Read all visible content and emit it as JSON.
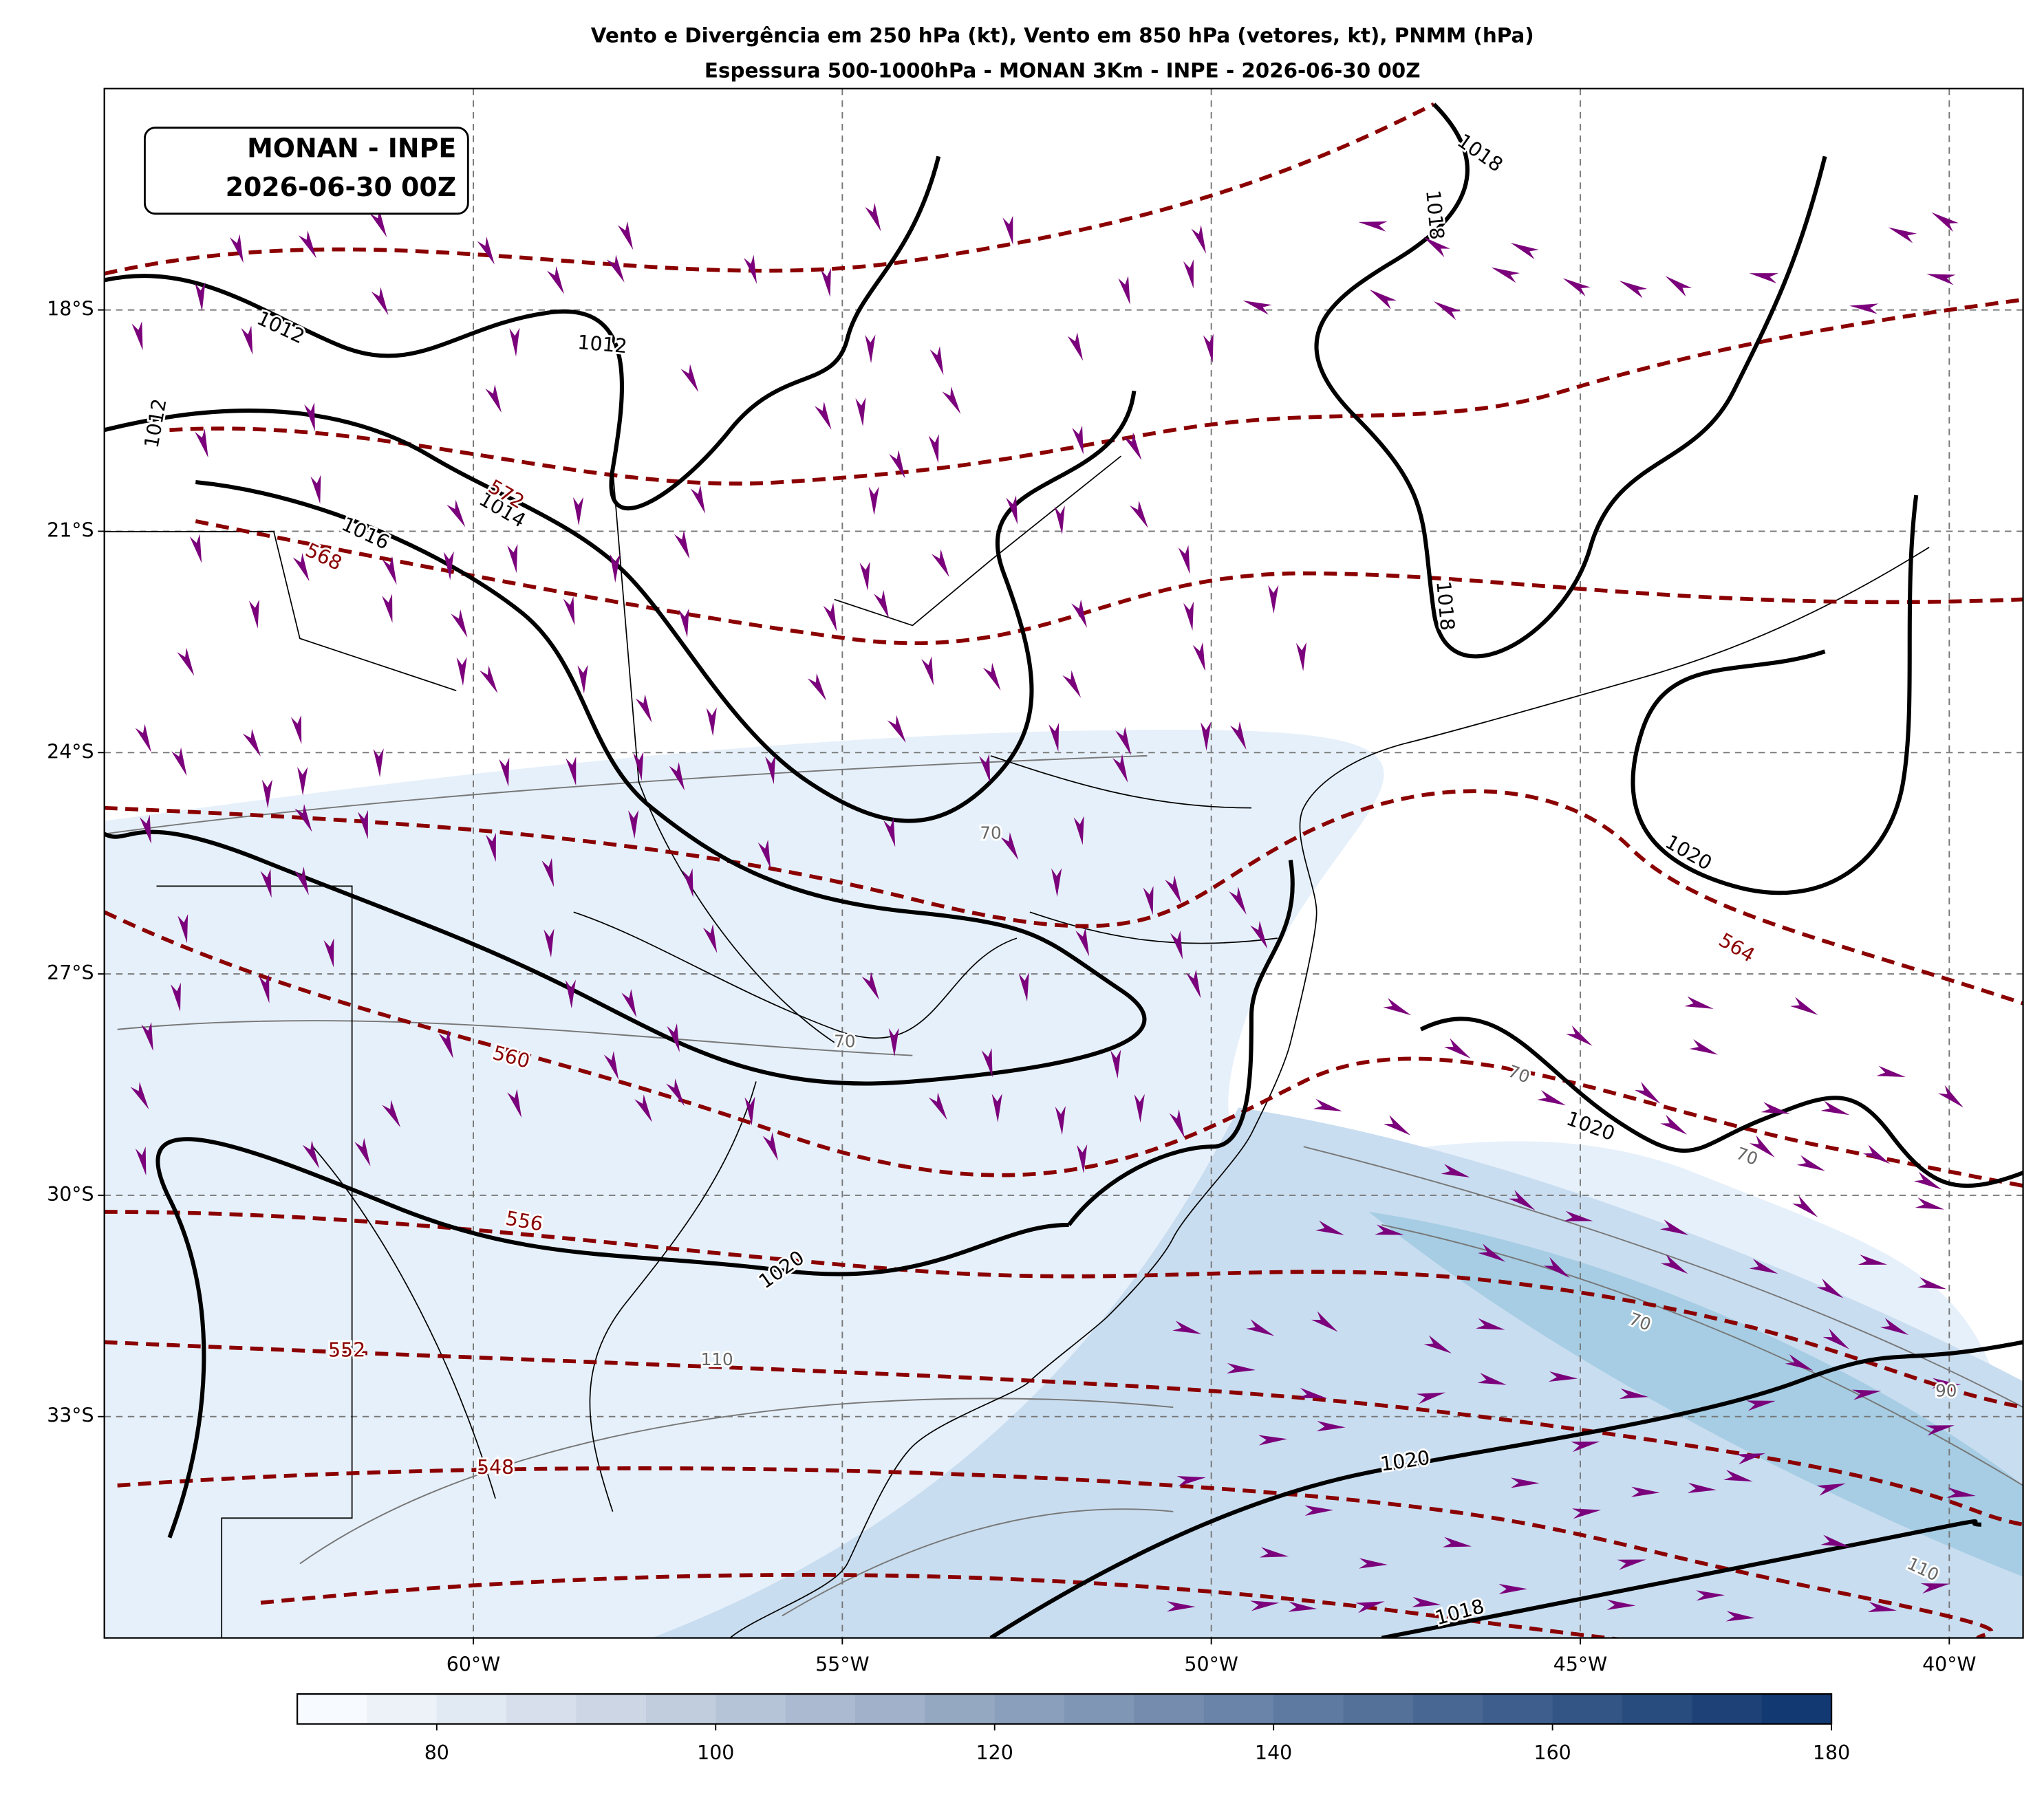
{
  "title": [
    "Vento e Divergência em 250 hPa (kt), Vento em 850 hPa (vetores, kt), PNMM (hPa)",
    "Espessura 500-1000hPa - MONAN 3Km - INPE - 2026-06-30 00Z"
  ],
  "label_box": [
    "MONAN - INPE",
    "2026-06-30 00Z"
  ],
  "map": {
    "lonlim": [
      -65,
      -39
    ],
    "latlim": [
      -36,
      -15
    ],
    "grid": true,
    "lon_ticks": [
      {
        "value": -60,
        "label": "60°W"
      },
      {
        "value": -55,
        "label": "55°W"
      },
      {
        "value": -50,
        "label": "50°W"
      },
      {
        "value": -45,
        "label": "45°W"
      },
      {
        "value": -40,
        "label": "40°W"
      }
    ],
    "lat_ticks": [
      {
        "value": -18,
        "label": "18°S"
      },
      {
        "value": -21,
        "label": "21°S"
      },
      {
        "value": -24,
        "label": "24°S"
      },
      {
        "value": -27,
        "label": "27°S"
      },
      {
        "value": -30,
        "label": "30°S"
      },
      {
        "value": -33,
        "label": "33°S"
      }
    ]
  },
  "colorbar": {
    "clim": [
      70,
      180
    ],
    "step": 5,
    "cmap": [
      "#f7fbff",
      "#08306b"
    ],
    "ticks": [
      80,
      100,
      120,
      140,
      160,
      180
    ]
  },
  "isobar_labels": [
    "1012",
    "1012",
    "1012",
    "1016",
    "1014",
    "1018",
    "1018",
    "1018",
    "1020",
    "1020",
    "1020",
    "1020",
    "1018"
  ],
  "thickness_labels": [
    "572",
    "568",
    "564",
    "560",
    "556",
    "552",
    "548"
  ],
  "wind_labels": [
    "70",
    "70",
    "70",
    "110",
    "110",
    "70",
    "90",
    "70"
  ]
}
